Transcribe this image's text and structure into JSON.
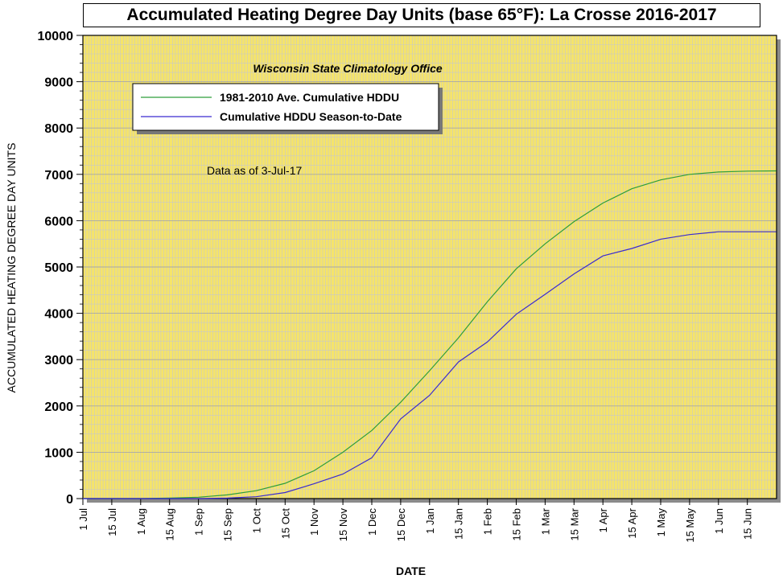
{
  "title": "Accumulated Heating Degree Day Units (base 65°F): La Crosse 2016-2017",
  "chart_data": {
    "type": "line",
    "title": "Accumulated Heating Degree Day Units (base 65°F): La Crosse 2016-2017",
    "subtitle": "Wisconsin State Climatology Office",
    "annotation": "Data as of 3-Jul-17",
    "xlabel": "DATE",
    "ylabel": "ACCUMULATED HEATING DEGREE DAY UNITS",
    "ylim": [
      0,
      10000
    ],
    "yticks": [
      0,
      1000,
      2000,
      3000,
      4000,
      5000,
      6000,
      7000,
      8000,
      9000,
      10000
    ],
    "xticks": [
      "1 Jul",
      "15 Jul",
      "1 Aug",
      "15 Aug",
      "1 Sep",
      "15 Sep",
      "1 Oct",
      "15 Oct",
      "1 Nov",
      "15 Nov",
      "1 Dec",
      "15 Dec",
      "1 Jan",
      "15 Jan",
      "1 Feb",
      "15 Feb",
      "1 Mar",
      "15 Mar",
      "1 Apr",
      "15 Apr",
      "1 May",
      "15 May",
      "1 Jun",
      "15 Jun"
    ],
    "x": [
      "1 Jul",
      "15 Jul",
      "1 Aug",
      "15 Aug",
      "1 Sep",
      "15 Sep",
      "1 Oct",
      "15 Oct",
      "1 Nov",
      "15 Nov",
      "1 Dec",
      "15 Dec",
      "1 Jan",
      "15 Jan",
      "1 Feb",
      "15 Feb",
      "1 Mar",
      "15 Mar",
      "1 Apr",
      "15 Apr",
      "1 May",
      "15 May",
      "1 Jun",
      "15 Jun",
      "30 Jun"
    ],
    "grid": true,
    "legend_position": "top-left",
    "background_color": "#f5e46a",
    "series": [
      {
        "name": "1981-2010 Ave. Cumulative HDDU",
        "color": "#2e9e3a",
        "values": [
          0,
          0,
          0,
          10,
          30,
          80,
          170,
          330,
          600,
          1000,
          1470,
          2080,
          2760,
          3470,
          4250,
          4960,
          5500,
          5980,
          6380,
          6690,
          6880,
          7000,
          7050,
          7070,
          7075
        ]
      },
      {
        "name": "Cumulative HDDU Season-to-Date",
        "color": "#3a2ad0",
        "values": [
          0,
          0,
          0,
          0,
          0,
          10,
          40,
          130,
          320,
          530,
          880,
          1720,
          2230,
          2950,
          3380,
          3980,
          4410,
          4850,
          5240,
          5400,
          5600,
          5700,
          5760,
          5760,
          5760
        ]
      }
    ]
  }
}
